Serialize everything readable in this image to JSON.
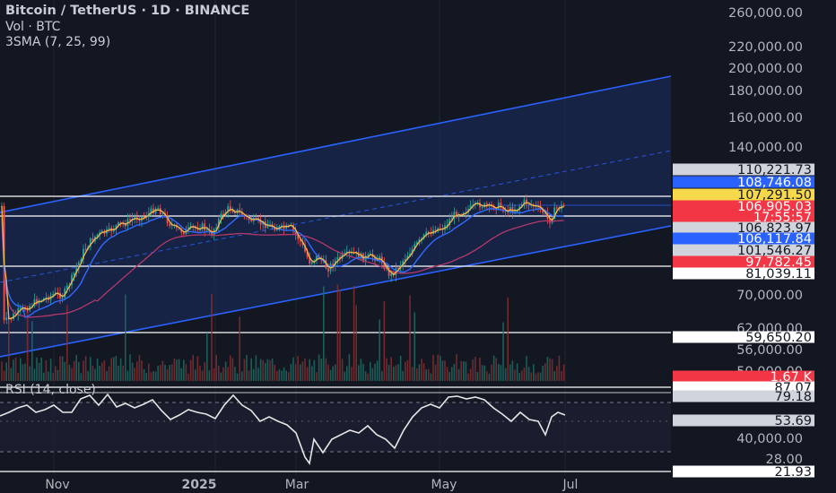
{
  "header": {
    "title": "Bitcoin / TetherUS · 1D · BINANCE",
    "volume": "Vol · BTC",
    "sma": "3SMA (7, 25, 99)",
    "rsi": "RSI (14, close)"
  },
  "colors": {
    "background": "#131722",
    "channel_fill": "#1b2a5a",
    "channel_line": "#2962ff",
    "up": "#26a69a",
    "down": "#ef5350",
    "sma7": "#f2b84b",
    "sma25": "#2f6bff",
    "sma99": "#b23a6a",
    "rsi_line": "#e6e6e6",
    "hline": "#ffffff"
  },
  "chart_data": {
    "type": "candlestick",
    "symbol": "BTCUSDT",
    "interval": "1D",
    "x_ticks": [
      "Nov",
      "2025",
      "Mar",
      "May",
      "Jul"
    ],
    "y_axis_labels": [
      "260,000.00",
      "220,000.00",
      "200,000.00",
      "180,000.00",
      "160,000.00",
      "140,000.00",
      "70,000.00",
      "62,000.00",
      "56,000.00",
      "50,000.00",
      "40,000.00",
      "28.00"
    ],
    "price_tags": [
      {
        "value": "110,221.73",
        "bg": "#d1d4dc",
        "fg": "#131722"
      },
      {
        "value": "108,746.08",
        "bg": "#2962ff",
        "fg": "#ffffff"
      },
      {
        "value": "107,291.50",
        "bg": "#f7d84a",
        "fg": "#131722"
      },
      {
        "value": "106,905.03",
        "bg": "#f23645",
        "fg": "#ffffff"
      },
      {
        "value": "17:55:57",
        "bg": "#f23645",
        "fg": "#ffffff"
      },
      {
        "value": "106,823.97",
        "bg": "#d1d4dc",
        "fg": "#131722"
      },
      {
        "value": "106,117.84",
        "bg": "#2962ff",
        "fg": "#ffffff"
      },
      {
        "value": "101,546.27",
        "bg": "#d1d4dc",
        "fg": "#131722"
      },
      {
        "value": "97,782.45",
        "bg": "#f23645",
        "fg": "#ffffff"
      },
      {
        "value": "81,039.11",
        "bg": "#ffffff",
        "fg": "#131722"
      },
      {
        "value": "59,650.20",
        "bg": "#ffffff",
        "fg": "#131722"
      },
      {
        "value": "1.67 K",
        "bg": "#f23645",
        "fg": "#ffffff"
      },
      {
        "value": "87.07",
        "bg": "#ffffff",
        "fg": "#131722"
      },
      {
        "value": "79.18",
        "bg": "#d1d4dc",
        "fg": "#131722"
      },
      {
        "value": "53.69",
        "bg": "#d1d4dc",
        "fg": "#131722"
      },
      {
        "value": "21.93",
        "bg": "#ffffff",
        "fg": "#131722"
      }
    ],
    "horizontal_levels": [
      "110,221.73",
      "106,117.84",
      "81,039.11",
      "59,650.20",
      "87.07",
      "21.93"
    ],
    "close_path": [
      [
        3,
        360
      ],
      [
        12,
        355
      ],
      [
        20,
        348
      ],
      [
        30,
        343
      ],
      [
        40,
        336
      ],
      [
        50,
        333
      ],
      [
        60,
        328
      ],
      [
        70,
        330
      ],
      [
        78,
        315
      ],
      [
        85,
        300
      ],
      [
        92,
        282
      ],
      [
        100,
        270
      ],
      [
        108,
        262
      ],
      [
        115,
        260
      ],
      [
        122,
        258
      ],
      [
        130,
        252
      ],
      [
        140,
        249
      ],
      [
        150,
        243
      ],
      [
        160,
        242
      ],
      [
        170,
        235
      ],
      [
        175,
        230
      ],
      [
        180,
        237
      ],
      [
        188,
        248
      ],
      [
        196,
        256
      ],
      [
        205,
        258
      ],
      [
        215,
        255
      ],
      [
        225,
        252
      ],
      [
        235,
        262
      ],
      [
        245,
        243
      ],
      [
        255,
        232
      ],
      [
        265,
        236
      ],
      [
        275,
        243
      ],
      [
        285,
        248
      ],
      [
        295,
        250
      ],
      [
        305,
        253
      ],
      [
        315,
        255
      ],
      [
        325,
        254
      ],
      [
        335,
        270
      ],
      [
        345,
        292
      ],
      [
        355,
        286
      ],
      [
        365,
        300
      ],
      [
        375,
        290
      ],
      [
        385,
        285
      ],
      [
        395,
        283
      ],
      [
        405,
        288
      ],
      [
        415,
        286
      ],
      [
        425,
        290
      ],
      [
        435,
        308
      ],
      [
        445,
        296
      ],
      [
        455,
        283
      ],
      [
        465,
        272
      ],
      [
        475,
        262
      ],
      [
        485,
        255
      ],
      [
        495,
        254
      ],
      [
        505,
        240
      ],
      [
        515,
        236
      ],
      [
        525,
        232
      ],
      [
        535,
        228
      ],
      [
        545,
        232
      ],
      [
        555,
        229
      ],
      [
        565,
        235
      ],
      [
        575,
        233
      ],
      [
        585,
        225
      ],
      [
        595,
        230
      ],
      [
        605,
        236
      ],
      [
        612,
        247
      ],
      [
        620,
        232
      ],
      [
        628,
        230
      ]
    ],
    "rsi_path": [
      [
        0,
        464
      ],
      [
        10,
        460
      ],
      [
        20,
        455
      ],
      [
        30,
        452
      ],
      [
        40,
        460
      ],
      [
        50,
        457
      ],
      [
        60,
        452
      ],
      [
        70,
        460
      ],
      [
        80,
        460
      ],
      [
        90,
        445
      ],
      [
        100,
        441
      ],
      [
        110,
        452
      ],
      [
        120,
        440
      ],
      [
        130,
        454
      ],
      [
        140,
        450
      ],
      [
        150,
        455
      ],
      [
        160,
        451
      ],
      [
        170,
        446
      ],
      [
        180,
        458
      ],
      [
        190,
        468
      ],
      [
        200,
        463
      ],
      [
        210,
        457
      ],
      [
        220,
        460
      ],
      [
        230,
        462
      ],
      [
        240,
        467
      ],
      [
        250,
        452
      ],
      [
        260,
        441
      ],
      [
        270,
        452
      ],
      [
        280,
        458
      ],
      [
        290,
        470
      ],
      [
        300,
        465
      ],
      [
        310,
        470
      ],
      [
        320,
        474
      ],
      [
        330,
        483
      ],
      [
        340,
        510
      ],
      [
        345,
        517
      ],
      [
        350,
        490
      ],
      [
        360,
        505
      ],
      [
        370,
        490
      ],
      [
        380,
        485
      ],
      [
        390,
        480
      ],
      [
        400,
        483
      ],
      [
        410,
        475
      ],
      [
        420,
        485
      ],
      [
        430,
        490
      ],
      [
        440,
        500
      ],
      [
        450,
        480
      ],
      [
        460,
        465
      ],
      [
        470,
        455
      ],
      [
        480,
        451
      ],
      [
        490,
        455
      ],
      [
        500,
        443
      ],
      [
        510,
        442
      ],
      [
        520,
        445
      ],
      [
        530,
        443
      ],
      [
        540,
        446
      ],
      [
        550,
        455
      ],
      [
        560,
        462
      ],
      [
        570,
        470
      ],
      [
        580,
        460
      ],
      [
        590,
        468
      ],
      [
        600,
        470
      ],
      [
        608,
        485
      ],
      [
        615,
        465
      ],
      [
        622,
        460
      ],
      [
        630,
        463
      ]
    ]
  }
}
